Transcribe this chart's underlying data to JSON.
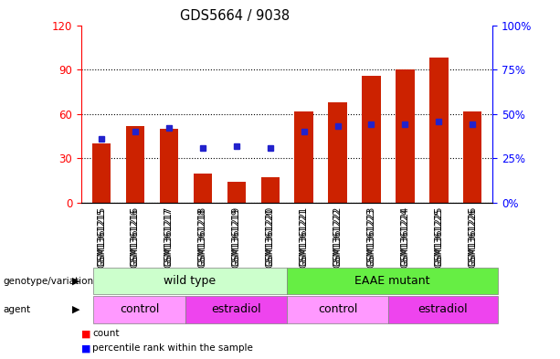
{
  "title": "GDS5664 / 9038",
  "samples": [
    "GSM1361215",
    "GSM1361216",
    "GSM1361217",
    "GSM1361218",
    "GSM1361219",
    "GSM1361220",
    "GSM1361221",
    "GSM1361222",
    "GSM1361223",
    "GSM1361224",
    "GSM1361225",
    "GSM1361226"
  ],
  "counts": [
    40,
    52,
    50,
    20,
    14,
    17,
    62,
    68,
    86,
    90,
    98,
    62
  ],
  "percentiles": [
    36,
    40,
    42,
    31,
    32,
    31,
    40,
    43,
    44,
    44,
    46,
    44
  ],
  "ylim_left": [
    0,
    120
  ],
  "ylim_right": [
    0,
    100
  ],
  "yticks_left": [
    0,
    30,
    60,
    90,
    120
  ],
  "yticks_right": [
    0,
    25,
    50,
    75,
    100
  ],
  "ytick_labels_left": [
    "0",
    "30",
    "60",
    "90",
    "120"
  ],
  "ytick_labels_right": [
    "0%",
    "25%",
    "50%",
    "75%",
    "100%"
  ],
  "bar_color": "#CC2200",
  "dot_color": "#2222CC",
  "wild_type_color": "#CCFFCC",
  "eaae_color": "#66EE44",
  "control_color": "#FF99FF",
  "estradiol_color": "#EE44EE",
  "bg_xtick_color": "#DDDDDD"
}
